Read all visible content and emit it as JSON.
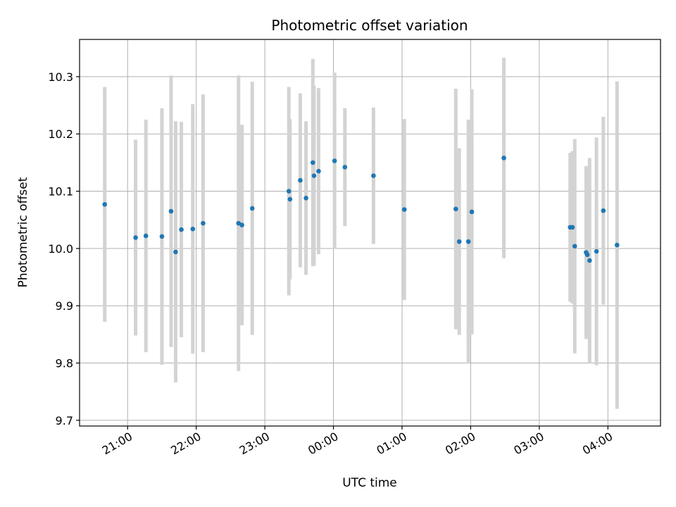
{
  "chart_data": {
    "type": "scatter",
    "title": "Photometric offset variation",
    "xlabel": "UTC time",
    "ylabel": "Photometric offset",
    "x_axis": {
      "ticks": [
        "21:00",
        "22:00",
        "23:00",
        "00:00",
        "01:00",
        "02:00",
        "03:00",
        "04:00"
      ],
      "range": [
        "20:18",
        "04:46"
      ]
    },
    "ylim": [
      9.69,
      10.365
    ],
    "y_ticks": [
      "9.7",
      "9.8",
      "9.9",
      "10.0",
      "10.1",
      "10.2",
      "10.3"
    ],
    "grid": true,
    "legend": "none",
    "colors": {
      "marker": "#1f77b4",
      "errorbar": "#d3d3d3",
      "grid": "#b0b0b0"
    },
    "series": [
      {
        "points": [
          {
            "t": "20:40",
            "y": 10.077,
            "yerr": 0.205
          },
          {
            "t": "21:07",
            "y": 10.019,
            "yerr": 0.171
          },
          {
            "t": "21:16",
            "y": 10.022,
            "yerr": 0.203
          },
          {
            "t": "21:30",
            "y": 10.021,
            "yerr": 0.224
          },
          {
            "t": "21:38",
            "y": 10.065,
            "yerr": 0.237
          },
          {
            "t": "21:42",
            "y": 9.994,
            "yerr": 0.228
          },
          {
            "t": "21:47",
            "y": 10.033,
            "yerr": 0.188
          },
          {
            "t": "21:57",
            "y": 10.034,
            "yerr": 0.218
          },
          {
            "t": "22:06",
            "y": 10.044,
            "yerr": 0.225
          },
          {
            "t": "22:37",
            "y": 10.044,
            "yerr": 0.258
          },
          {
            "t": "22:40",
            "y": 10.041,
            "yerr": 0.175
          },
          {
            "t": "22:49",
            "y": 10.07,
            "yerr": 0.221
          },
          {
            "t": "23:21",
            "y": 10.1,
            "yerr": 0.182
          },
          {
            "t": "23:22",
            "y": 10.086,
            "yerr": 0.14
          },
          {
            "t": "23:31",
            "y": 10.119,
            "yerr": 0.152
          },
          {
            "t": "23:36",
            "y": 10.088,
            "yerr": 0.134
          },
          {
            "t": "23:42",
            "y": 10.15,
            "yerr": 0.181
          },
          {
            "t": "23:43",
            "y": 10.127,
            "yerr": 0.157
          },
          {
            "t": "23:47",
            "y": 10.135,
            "yerr": 0.145
          },
          {
            "t": "00:01",
            "y": 10.153,
            "yerr": 0.154
          },
          {
            "t": "00:10",
            "y": 10.142,
            "yerr": 0.103
          },
          {
            "t": "00:35",
            "y": 10.127,
            "yerr": 0.119
          },
          {
            "t": "01:02",
            "y": 10.068,
            "yerr": 0.158
          },
          {
            "t": "01:47",
            "y": 10.069,
            "yerr": 0.21
          },
          {
            "t": "01:50",
            "y": 10.012,
            "yerr": 0.163
          },
          {
            "t": "01:58",
            "y": 10.012,
            "yerr": 0.213
          },
          {
            "t": "02:01",
            "y": 10.064,
            "yerr": 0.214
          },
          {
            "t": "02:29",
            "y": 10.158,
            "yerr": 0.175
          },
          {
            "t": "03:27",
            "y": 10.037,
            "yerr": 0.13
          },
          {
            "t": "03:29",
            "y": 10.037,
            "yerr": 0.133
          },
          {
            "t": "03:31",
            "y": 10.004,
            "yerr": 0.187
          },
          {
            "t": "03:41",
            "y": 9.993,
            "yerr": 0.151
          },
          {
            "t": "03:42",
            "y": 9.989,
            "yerr": 0.141
          },
          {
            "t": "03:44",
            "y": 9.979,
            "yerr": 0.179
          },
          {
            "t": "03:50",
            "y": 9.995,
            "yerr": 0.199
          },
          {
            "t": "03:56",
            "y": 10.066,
            "yerr": 0.164
          },
          {
            "t": "04:08",
            "y": 10.006,
            "yerr": 0.286
          }
        ]
      }
    ]
  }
}
